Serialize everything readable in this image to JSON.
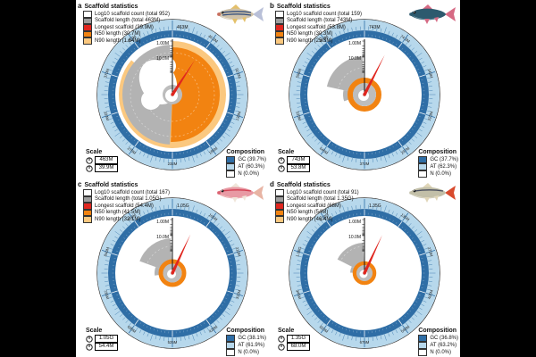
{
  "figure": {
    "panels": [
      {
        "letter": "a",
        "stats_title": "Scaffold statistics",
        "stats": [
          {
            "label": "Log10 scaffold count (total 952)",
            "color": "#ffffff"
          },
          {
            "label": "Scaffold length (total 463M)",
            "color": "#9e9e9e"
          },
          {
            "label": "Longest scaffold (39.9M)",
            "color": "#e0261f"
          },
          {
            "label": "N50 length (30.7M)",
            "color": "#f28311"
          },
          {
            "label": "N90 length (1.64M)",
            "color": "#fbc87f"
          }
        ],
        "scale_title": "Scale",
        "scale_values": [
          "463M",
          "39.9M"
        ],
        "composition_title": "Composition",
        "composition": [
          {
            "label": "GC (39.7%)",
            "color": "#2f6ea6"
          },
          {
            "label": "AT (60.3%)",
            "color": "#b7d8ec"
          },
          {
            "label": "N (0.0%)",
            "color": "#ffffff"
          }
        ],
        "axis_labels": [
          "1.00M",
          "10.0M"
        ],
        "ring_top_label": "463M",
        "ring_labels": [
          "46.3M",
          "92.6M",
          "139M",
          "185M",
          "232M",
          "278M",
          "324M",
          "370M",
          "417M"
        ]
      },
      {
        "letter": "b",
        "stats_title": "Scaffold statistics",
        "stats": [
          {
            "label": "Log10 scaffold count (total 159)",
            "color": "#ffffff"
          },
          {
            "label": "Scaffold length (total 743M)",
            "color": "#9e9e9e"
          },
          {
            "label": "Longest scaffold (53.8M)",
            "color": "#e0261f"
          },
          {
            "label": "N50 length (30.3M)",
            "color": "#f28311"
          },
          {
            "label": "N90 length (25.3M)",
            "color": "#fbc87f"
          }
        ],
        "scale_title": "Scale",
        "scale_values": [
          "743M",
          "53.8M"
        ],
        "composition_title": "Composition",
        "composition": [
          {
            "label": "GC (37.7%)",
            "color": "#2f6ea6"
          },
          {
            "label": "AT (62.3%)",
            "color": "#b7d8ec"
          },
          {
            "label": "N (0.0%)",
            "color": "#ffffff"
          }
        ],
        "axis_labels": [
          "1.00M",
          "10.0M"
        ],
        "ring_top_label": "743M",
        "ring_labels": [
          "74.3M",
          "149M",
          "223M",
          "297M",
          "372M",
          "446M",
          "520M",
          "594M",
          "669M"
        ]
      },
      {
        "letter": "c",
        "stats_title": "Scaffold statistics",
        "stats": [
          {
            "label": "Log10 scaffold count (total 167)",
            "color": "#ffffff"
          },
          {
            "label": "Scaffold length (total 1.05G)",
            "color": "#9e9e9e"
          },
          {
            "label": "Longest scaffold (54.4M)",
            "color": "#e0261f"
          },
          {
            "label": "N50 length (41.5M)",
            "color": "#f28311"
          },
          {
            "label": "N90 length (32.1M)",
            "color": "#fbc87f"
          }
        ],
        "scale_title": "Scale",
        "scale_values": [
          "1.05G",
          "54.4M"
        ],
        "composition_title": "Composition",
        "composition": [
          {
            "label": "GC (38.1%)",
            "color": "#2f6ea6"
          },
          {
            "label": "AT (61.9%)",
            "color": "#b7d8ec"
          },
          {
            "label": "N (0.0%)",
            "color": "#ffffff"
          }
        ],
        "axis_labels": [
          "1.00M",
          "10.0M"
        ],
        "ring_top_label": "1.05G",
        "ring_labels": [
          "105M",
          "210M",
          "315M",
          "420M",
          "525M",
          "630M",
          "735M",
          "840M",
          "945M"
        ]
      },
      {
        "letter": "d",
        "stats_title": "Scaffold statistics",
        "stats": [
          {
            "label": "Log10 scaffold count (total 91)",
            "color": "#ffffff"
          },
          {
            "label": "Scaffold length (total 1.35G)",
            "color": "#9e9e9e"
          },
          {
            "label": "Longest scaffold (68M)",
            "color": "#e0261f"
          },
          {
            "label": "N50 length (54M)",
            "color": "#f28311"
          },
          {
            "label": "N90 length (46.4M)",
            "color": "#fbc87f"
          }
        ],
        "scale_title": "Scale",
        "scale_values": [
          "1.35G",
          "68.0M"
        ],
        "composition_title": "Composition",
        "composition": [
          {
            "label": "GC (36.8%)",
            "color": "#2f6ea6"
          },
          {
            "label": "AT (63.2%)",
            "color": "#b7d8ec"
          },
          {
            "label": "N (0.0%)",
            "color": "#ffffff"
          }
        ],
        "axis_labels": [
          "1.00M",
          "10.0M"
        ],
        "ring_top_label": "1.35G",
        "ring_labels": [
          "135M",
          "270M",
          "405M",
          "540M",
          "675M",
          "810M",
          "945M",
          "1.08G",
          "1.22G"
        ]
      }
    ],
    "colors": {
      "n50_orange": "#f28311",
      "n90_pale_orange": "#fbc87f",
      "scaffold_gray": "#b3b3b3",
      "longest_red": "#e0261f",
      "gc_dark_blue": "#2f6ea6",
      "at_light_blue": "#b7d8ec"
    }
  },
  "chart_data": [
    {
      "type": "snail-plot",
      "panel": "a",
      "log10_scaffold_count_total": 952,
      "scaffold_length_total": "463M",
      "longest_scaffold": "39.9M",
      "n50_length": "30.7M",
      "n90_length": "1.64M",
      "gc_pct": 39.7,
      "at_pct": 60.3,
      "n_pct": 0.0,
      "radial_axis_ticks": [
        "1.00M",
        "10.0M"
      ],
      "circumference_labels": [
        "463M",
        "46.3M",
        "92.6M",
        "139M",
        "185M",
        "232M",
        "278M",
        "324M",
        "370M",
        "417M"
      ]
    },
    {
      "type": "snail-plot",
      "panel": "b",
      "log10_scaffold_count_total": 159,
      "scaffold_length_total": "743M",
      "longest_scaffold": "53.8M",
      "n50_length": "30.3M",
      "n90_length": "25.3M",
      "gc_pct": 37.7,
      "at_pct": 62.3,
      "n_pct": 0.0,
      "radial_axis_ticks": [
        "1.00M",
        "10.0M"
      ],
      "circumference_labels": [
        "743M",
        "74.3M",
        "149M",
        "223M",
        "297M",
        "372M",
        "446M",
        "520M",
        "594M",
        "669M"
      ]
    },
    {
      "type": "snail-plot",
      "panel": "c",
      "log10_scaffold_count_total": 167,
      "scaffold_length_total": "1.05G",
      "longest_scaffold": "54.4M",
      "n50_length": "41.5M",
      "n90_length": "32.1M",
      "gc_pct": 38.1,
      "at_pct": 61.9,
      "n_pct": 0.0,
      "radial_axis_ticks": [
        "1.00M",
        "10.0M"
      ],
      "circumference_labels": [
        "1.05G",
        "105M",
        "210M",
        "315M",
        "420M",
        "525M",
        "630M",
        "735M",
        "840M",
        "945M"
      ]
    },
    {
      "type": "snail-plot",
      "panel": "d",
      "log10_scaffold_count_total": 91,
      "scaffold_length_total": "1.35G",
      "longest_scaffold": "68M",
      "n50_length": "54M",
      "n90_length": "46.4M",
      "gc_pct": 36.8,
      "at_pct": 63.2,
      "n_pct": 0.0,
      "radial_axis_ticks": [
        "1.00M",
        "10.0M"
      ],
      "circumference_labels": [
        "1.35G",
        "135M",
        "270M",
        "405M",
        "540M",
        "675M",
        "810M",
        "945M",
        "1.08G",
        "1.22G"
      ]
    }
  ]
}
